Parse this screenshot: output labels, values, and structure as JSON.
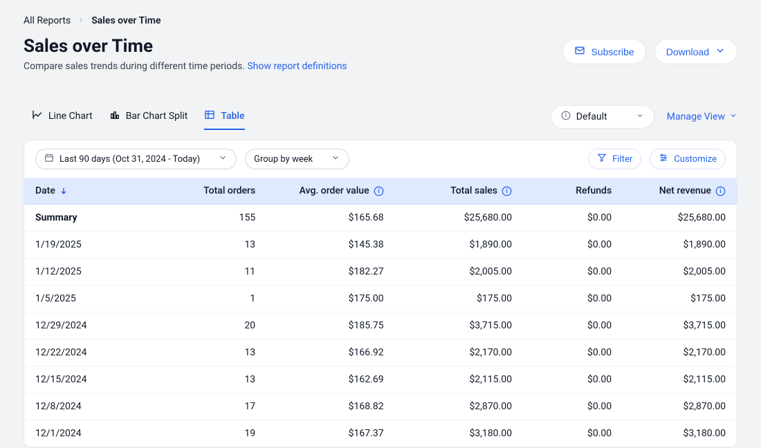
{
  "breadcrumb": {
    "root": "All Reports",
    "current": "Sales over Time"
  },
  "header": {
    "title": "Sales over Time",
    "subtitle_prefix": "Compare sales trends during different time periods. ",
    "subtitle_link": "Show report definitions",
    "subscribe_label": "Subscribe",
    "download_label": "Download"
  },
  "tabs": {
    "line": "Line Chart",
    "bar": "Bar Chart Split",
    "table": "Table",
    "active": "table"
  },
  "view": {
    "selector_label": "Default",
    "manage_label": "Manage View"
  },
  "filters": {
    "date_range_label": "Last 90 days (Oct 31, 2024 - Today)",
    "group_by_label": "Group by week",
    "filter_label": "Filter",
    "customize_label": "Customize"
  },
  "table": {
    "columns": {
      "date": "Date",
      "total_orders": "Total orders",
      "avg_order_value": "Avg. order value",
      "total_sales": "Total sales",
      "refunds": "Refunds",
      "net_revenue": "Net revenue"
    },
    "summary_label": "Summary",
    "summary": {
      "total_orders": "155",
      "avg_order_value": "$165.68",
      "total_sales": "$25,680.00",
      "refunds": "$0.00",
      "net_revenue": "$25,680.00"
    },
    "rows": [
      {
        "date": "1/19/2025",
        "total_orders": "13",
        "avg_order_value": "$145.38",
        "total_sales": "$1,890.00",
        "refunds": "$0.00",
        "net_revenue": "$1,890.00"
      },
      {
        "date": "1/12/2025",
        "total_orders": "11",
        "avg_order_value": "$182.27",
        "total_sales": "$2,005.00",
        "refunds": "$0.00",
        "net_revenue": "$2,005.00"
      },
      {
        "date": "1/5/2025",
        "total_orders": "1",
        "avg_order_value": "$175.00",
        "total_sales": "$175.00",
        "refunds": "$0.00",
        "net_revenue": "$175.00"
      },
      {
        "date": "12/29/2024",
        "total_orders": "20",
        "avg_order_value": "$185.75",
        "total_sales": "$3,715.00",
        "refunds": "$0.00",
        "net_revenue": "$3,715.00"
      },
      {
        "date": "12/22/2024",
        "total_orders": "13",
        "avg_order_value": "$166.92",
        "total_sales": "$2,170.00",
        "refunds": "$0.00",
        "net_revenue": "$2,170.00"
      },
      {
        "date": "12/15/2024",
        "total_orders": "13",
        "avg_order_value": "$162.69",
        "total_sales": "$2,115.00",
        "refunds": "$0.00",
        "net_revenue": "$2,115.00"
      },
      {
        "date": "12/8/2024",
        "total_orders": "17",
        "avg_order_value": "$168.82",
        "total_sales": "$2,870.00",
        "refunds": "$0.00",
        "net_revenue": "$2,870.00"
      },
      {
        "date": "12/1/2024",
        "total_orders": "19",
        "avg_order_value": "$167.37",
        "total_sales": "$3,180.00",
        "refunds": "$0.00",
        "net_revenue": "$3,180.00"
      }
    ]
  },
  "colors": {
    "page_bg": "#f2f3f5",
    "card_bg": "#ffffff",
    "border": "#e5e7eb",
    "header_bg": "#dfeafe",
    "primary": "#2563eb",
    "text": "#111827",
    "muted": "#6b7280"
  }
}
